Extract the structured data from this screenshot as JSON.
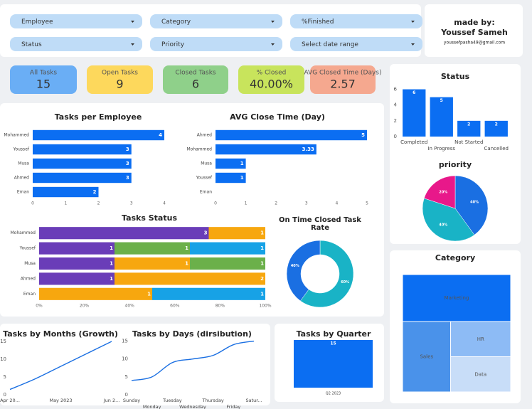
{
  "filters": [
    "Employee",
    "Category",
    "%Finished",
    "Status",
    "Priority",
    "Select date range"
  ],
  "made_by": {
    "label": "made by:",
    "name": "Youssef Sameh",
    "email": "youssefpasha49@gmail.com"
  },
  "kpis": [
    {
      "label": "All Tasks",
      "value": "15",
      "color": "#6aaef5"
    },
    {
      "label": "Open Tasks",
      "value": "9",
      "color": "#fdd85c"
    },
    {
      "label": "Closed Tasks",
      "value": "6",
      "color": "#8fd08a"
    },
    {
      "label": "% Closed",
      "value": "40.00%",
      "color": "#c8e45c"
    },
    {
      "label": "AVG Closed Time (Days)",
      "value": "2.57",
      "color": "#f5a88f"
    }
  ],
  "chart_data": [
    {
      "type": "bar",
      "orientation": "horizontal",
      "title": "Tasks per Employee",
      "categories": [
        "Mohammed",
        "Youssef",
        "Musa",
        "Ahmed",
        "Eman"
      ],
      "values": [
        4,
        3,
        3,
        3,
        2
      ],
      "color": "#0b6ef2",
      "xlim": [
        0,
        4
      ],
      "xticks": [
        0,
        1,
        2,
        3,
        4
      ]
    },
    {
      "type": "bar",
      "orientation": "horizontal",
      "title": "AVG Close Time (Day)",
      "categories": [
        "Ahmed",
        "Mohammed",
        "Musa",
        "Youssef",
        "Eman"
      ],
      "values": [
        5,
        3.33,
        1,
        1,
        null
      ],
      "color": "#0b6ef2",
      "xlim": [
        0,
        5
      ],
      "xticks": [
        0,
        1,
        2,
        3,
        4,
        5
      ]
    },
    {
      "type": "stacked_bar",
      "orientation": "horizontal",
      "stack": "percent",
      "title": "Tasks Status",
      "categories": [
        "Mohammed",
        "Youssef",
        "Musa",
        "Ahmed",
        "Eman"
      ],
      "series": [
        {
          "color": "#6a3db8",
          "values": [
            3,
            1,
            1,
            1,
            null
          ]
        },
        {
          "color": "#f7a70f",
          "values": [
            1,
            null,
            1,
            2,
            1
          ]
        },
        {
          "color": "#6bb04a",
          "values": [
            null,
            1,
            1,
            null,
            null
          ]
        },
        {
          "color": "#17a2e6",
          "values": [
            null,
            1,
            null,
            null,
            1
          ]
        }
      ],
      "xlim": [
        0,
        100
      ],
      "xticks": [
        {
          "value": 0,
          "label": "0%"
        },
        {
          "value": 20,
          "label": "20%"
        },
        {
          "value": 40,
          "label": "40%"
        },
        {
          "value": 60,
          "label": "60%"
        },
        {
          "value": 80,
          "label": "80%"
        },
        {
          "value": 100,
          "label": "100%"
        }
      ]
    },
    {
      "type": "donut",
      "title": "On Time Closed Task Rate",
      "values": [
        60,
        40
      ],
      "value_labels": [
        "60%",
        "40%"
      ],
      "colors": [
        "#19b3c6",
        "#1a6fe2"
      ]
    },
    {
      "type": "bar",
      "orientation": "vertical",
      "title": "Status",
      "categories": [
        "Completed",
        "In Progress",
        "Not Started",
        "Cancelled"
      ],
      "values": [
        6,
        5,
        2,
        2
      ],
      "color": "#0b6ef2",
      "ylim": [
        0,
        6.5
      ],
      "yticks": [
        0,
        2,
        4,
        6
      ]
    },
    {
      "type": "pie",
      "title": "priority",
      "values": [
        40,
        40,
        20
      ],
      "value_labels": [
        "40%",
        "40%",
        "20%"
      ],
      "colors": [
        "#1a6fe2",
        "#19b3c6",
        "#e8188a"
      ]
    },
    {
      "type": "treemap",
      "title": "Category",
      "categories": [
        "Marketing",
        "Sales",
        "HR",
        "Data"
      ],
      "values": [
        6,
        4,
        2.5,
        2.5
      ],
      "colors": [
        "#0b6ef2",
        "#4a92ea",
        "#8dbbf5",
        "#c8ddf8"
      ]
    },
    {
      "type": "line",
      "title": "Tasks by Months (Growth)",
      "categories": [
        "Apr 20...",
        null,
        "May 2023",
        null,
        "Jun 2..."
      ],
      "values": [
        1.5,
        4.5,
        8,
        11.5,
        15
      ],
      "color": "#1a6fe2",
      "ylim": [
        0,
        16
      ],
      "yticks": [
        0,
        5,
        10,
        15
      ]
    },
    {
      "type": "line",
      "title": "Tasks by Days (dirsibution)",
      "categories": [
        "Sunday",
        "Monday",
        "Tuesday",
        "Wednesday",
        "Thursday",
        "Friday",
        "Satur..."
      ],
      "values": [
        4,
        5,
        9,
        10,
        11,
        14,
        15
      ],
      "color": "#1a6fe2",
      "ylim": [
        0,
        15.5
      ],
      "yticks": [
        0,
        5,
        10,
        15
      ]
    },
    {
      "type": "bar",
      "orientation": "vertical",
      "title": "Tasks by Quarter",
      "categories": [
        "Q2 2023"
      ],
      "values": [
        15
      ],
      "color": "#0b6ef2",
      "ylim": [
        0,
        15
      ]
    }
  ]
}
